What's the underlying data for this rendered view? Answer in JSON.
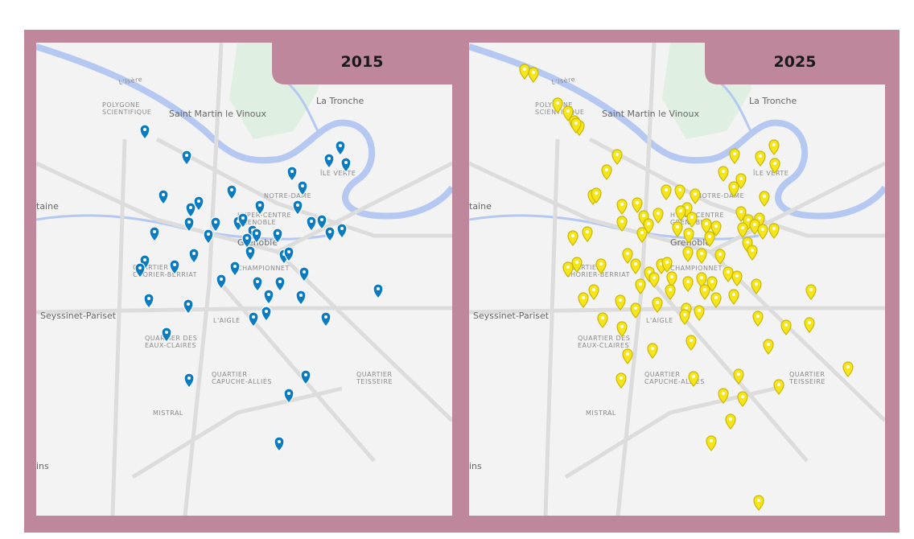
{
  "panels": [
    {
      "title": "2015"
    },
    {
      "title": "2025"
    }
  ],
  "map_labels": [
    "L'Isère",
    "POLYGONE SCIENTIFIQUE",
    "Saint Martin le Vinoux",
    "La Tronche",
    "ÎLE VERTE",
    "NOTRE-DAME",
    "HYPER-CENTRE GRENOBLE",
    "Grenoble",
    "QUARTIER CHORIER-BERRIAT",
    "CHAMPIONNET",
    "Seyssinet-Pariset",
    "L'AIGLE",
    "QUARTIER DES EAUX-CLAIRES",
    "QUARTIER CAPUCHE-ALLIÉS",
    "QUARTIER TEISSEIRE",
    "MISTRAL",
    "taine",
    "ins"
  ]
}
